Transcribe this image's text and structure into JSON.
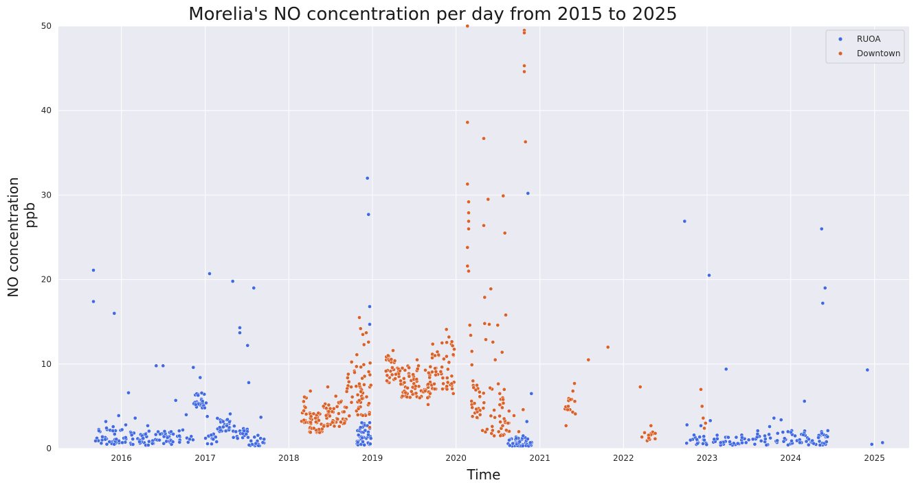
{
  "chart_data": {
    "type": "scatter",
    "title": "Morelia's NO concentration per day from 2015 to 2025",
    "xlabel": "Time",
    "ylabel": [
      "NO concentration",
      "ppb"
    ],
    "xlim": [
      "2015-04-01",
      "2025-06-01"
    ],
    "ylim": [
      0,
      50
    ],
    "x_ticks": [
      "2016",
      "2017",
      "2018",
      "2019",
      "2020",
      "2021",
      "2022",
      "2023",
      "2024",
      "2025"
    ],
    "y_ticks": [
      0,
      10,
      20,
      30,
      40,
      50
    ],
    "grid": true,
    "legend": {
      "placement": "top-right"
    },
    "series": [
      {
        "name": "RUOA",
        "color": "#4169e1",
        "points": [
          [
            "2015-09-01",
            21.1
          ],
          [
            "2015-09-01",
            17.4
          ],
          [
            "2015-12-01",
            16.0
          ],
          [
            "2015-09-10",
            0.9
          ],
          [
            "2015-09-25",
            2.1
          ],
          [
            "2015-10-10",
            1.4
          ],
          [
            "2015-10-25",
            3.2
          ],
          [
            "2015-11-10",
            0.8
          ],
          [
            "2015-11-25",
            2.1
          ],
          [
            "2015-12-10",
            1.1
          ],
          [
            "2015-12-20",
            3.9
          ],
          [
            "2016-01-05",
            0.7
          ],
          [
            "2016-01-20",
            2.8
          ],
          [
            "2016-02-01",
            6.6
          ],
          [
            "2016-02-15",
            1.6
          ],
          [
            "2016-03-01",
            3.6
          ],
          [
            "2016-03-20",
            0.8
          ],
          [
            "2016-04-05",
            1.2
          ],
          [
            "2016-04-25",
            2.7
          ],
          [
            "2016-05-15",
            0.6
          ],
          [
            "2016-06-01",
            9.8
          ],
          [
            "2016-06-15",
            1.0
          ],
          [
            "2016-07-01",
            9.8
          ],
          [
            "2016-07-20",
            1.3
          ],
          [
            "2016-08-05",
            2.0
          ],
          [
            "2016-08-25",
            5.7
          ],
          [
            "2016-09-10",
            1.5
          ],
          [
            "2016-09-25",
            2.2
          ],
          [
            "2016-10-10",
            4.0
          ],
          [
            "2016-10-25",
            1.1
          ],
          [
            "2016-11-10",
            9.6
          ],
          [
            "2016-11-20",
            5.2
          ],
          [
            "2016-12-01",
            6.3
          ],
          [
            "2016-12-10",
            8.4
          ],
          [
            "2016-12-20",
            5.6
          ],
          [
            "2017-01-05",
            5.4
          ],
          [
            "2017-01-10",
            3.8
          ],
          [
            "2017-01-20",
            20.7
          ],
          [
            "2017-02-05",
            1.1
          ],
          [
            "2017-02-20",
            0.8
          ],
          [
            "2017-03-05",
            2.5
          ],
          [
            "2017-03-20",
            3.2
          ],
          [
            "2017-04-05",
            2.7
          ],
          [
            "2017-04-20",
            4.1
          ],
          [
            "2017-05-01",
            19.8
          ],
          [
            "2017-05-15",
            2.0
          ],
          [
            "2017-06-01",
            14.3
          ],
          [
            "2017-06-01",
            13.7
          ],
          [
            "2017-06-20",
            2.1
          ],
          [
            "2017-07-05",
            12.2
          ],
          [
            "2017-07-10",
            7.8
          ],
          [
            "2017-07-20",
            0.9
          ],
          [
            "2017-08-01",
            19.0
          ],
          [
            "2017-08-10",
            0.6
          ],
          [
            "2017-09-01",
            3.7
          ],
          [
            "2017-09-15",
            1.1
          ],
          [
            "2018-11-01",
            1.6
          ],
          [
            "2018-11-10",
            2.5
          ],
          [
            "2018-11-20",
            0.8
          ],
          [
            "2018-12-01",
            4.0
          ],
          [
            "2018-12-10",
            32.0
          ],
          [
            "2018-12-15",
            27.7
          ],
          [
            "2018-12-20",
            16.8
          ],
          [
            "2018-12-20",
            14.7
          ],
          [
            "2018-12-25",
            1.2
          ],
          [
            "2020-08-20",
            1.0
          ],
          [
            "2020-09-05",
            0.6
          ],
          [
            "2020-09-20",
            1.2
          ],
          [
            "2020-10-05",
            0.8
          ],
          [
            "2020-10-20",
            1.5
          ],
          [
            "2020-11-05",
            3.2
          ],
          [
            "2020-11-10",
            30.2
          ],
          [
            "2020-11-20",
            0.7
          ],
          [
            "2020-11-25",
            6.5
          ],
          [
            "2022-09-25",
            26.9
          ],
          [
            "2022-10-05",
            2.8
          ],
          [
            "2022-10-20",
            1.0
          ],
          [
            "2022-11-05",
            1.6
          ],
          [
            "2022-11-20",
            0.6
          ],
          [
            "2022-12-05",
            2.7
          ],
          [
            "2022-12-20",
            1.0
          ],
          [
            "2023-01-10",
            20.5
          ],
          [
            "2023-01-15",
            3.3
          ],
          [
            "2023-02-01",
            1.1
          ],
          [
            "2023-03-01",
            0.7
          ],
          [
            "2023-03-25",
            9.4
          ],
          [
            "2023-04-10",
            0.8
          ],
          [
            "2023-05-15",
            0.6
          ],
          [
            "2023-06-20",
            0.7
          ],
          [
            "2023-07-20",
            1.1
          ],
          [
            "2023-08-10",
            2.1
          ],
          [
            "2023-08-25",
            0.9
          ],
          [
            "2023-09-10",
            1.5
          ],
          [
            "2023-10-01",
            2.6
          ],
          [
            "2023-10-20",
            3.6
          ],
          [
            "2023-11-05",
            1.8
          ],
          [
            "2023-11-20",
            3.4
          ],
          [
            "2023-12-05",
            1.2
          ],
          [
            "2023-12-20",
            2.0
          ],
          [
            "2024-01-05",
            0.9
          ],
          [
            "2024-01-20",
            1.5
          ],
          [
            "2024-02-10",
            0.7
          ],
          [
            "2024-03-01",
            5.6
          ],
          [
            "2024-03-20",
            1.1
          ],
          [
            "2024-04-10",
            0.6
          ],
          [
            "2024-05-01",
            1.3
          ],
          [
            "2024-05-15",
            26.0
          ],
          [
            "2024-05-20",
            17.2
          ],
          [
            "2024-05-30",
            19.0
          ],
          [
            "2024-06-05",
            0.8
          ],
          [
            "2024-06-10",
            1.4
          ],
          [
            "2024-12-01",
            9.3
          ],
          [
            "2024-12-20",
            0.5
          ],
          [
            "2025-02-05",
            0.7
          ]
        ],
        "clusters": [
          [
            "2015-09-01",
            "2016-01-15",
            0.5,
            2.6,
            32
          ],
          [
            "2016-01-15",
            "2016-11-10",
            0.4,
            2.1,
            60
          ],
          [
            "2016-11-10",
            "2016-12-31",
            4.8,
            6.6,
            22
          ],
          [
            "2017-01-01",
            "2017-02-20",
            0.5,
            1.8,
            10
          ],
          [
            "2017-02-20",
            "2017-05-01",
            2.0,
            3.6,
            26
          ],
          [
            "2017-05-01",
            "2017-07-05",
            1.2,
            2.7,
            18
          ],
          [
            "2017-07-05",
            "2017-09-15",
            0.3,
            1.6,
            16
          ],
          [
            "2018-10-25",
            "2018-12-25",
            0.4,
            3.2,
            38
          ],
          [
            "2020-08-15",
            "2020-11-30",
            0.3,
            1.4,
            38
          ],
          [
            "2022-10-01",
            "2023-07-01",
            0.4,
            1.6,
            36
          ],
          [
            "2023-07-01",
            "2024-06-15",
            0.4,
            2.2,
            58
          ]
        ]
      },
      {
        "name": "Downtown",
        "color": "#d9622b",
        "points": [
          [
            "2018-03-10",
            6.1
          ],
          [
            "2018-04-05",
            6.8
          ],
          [
            "2018-04-20",
            2.4
          ],
          [
            "2018-05-10",
            4.2
          ],
          [
            "2018-06-01",
            5.0
          ],
          [
            "2018-06-20",
            7.3
          ],
          [
            "2018-07-10",
            3.1
          ],
          [
            "2018-07-25",
            6.2
          ],
          [
            "2018-08-15",
            5.5
          ],
          [
            "2018-09-01",
            3.0
          ],
          [
            "2018-09-20",
            7.9
          ],
          [
            "2018-10-05",
            6.1
          ],
          [
            "2018-10-15",
            9.0
          ],
          [
            "2018-10-25",
            11.1
          ],
          [
            "2018-11-05",
            15.5
          ],
          [
            "2018-11-10",
            14.2
          ],
          [
            "2018-11-20",
            13.5
          ],
          [
            "2018-11-25",
            12.3
          ],
          [
            "2018-12-05",
            13.7
          ],
          [
            "2018-12-15",
            12.6
          ],
          [
            "2018-12-20",
            2.5
          ],
          [
            "2018-12-25",
            7.5
          ],
          [
            "2019-03-10",
            11.0
          ],
          [
            "2019-04-01",
            11.6
          ],
          [
            "2019-05-01",
            9.2
          ],
          [
            "2019-06-01",
            6.1
          ],
          [
            "2019-07-15",
            10.5
          ],
          [
            "2019-09-01",
            5.2
          ],
          [
            "2019-10-01",
            11.0
          ],
          [
            "2019-11-01",
            12.5
          ],
          [
            "2019-11-20",
            14.1
          ],
          [
            "2019-12-01",
            13.2
          ],
          [
            "2019-12-20",
            6.5
          ],
          [
            "2020-02-20",
            50.0
          ],
          [
            "2020-02-20",
            38.6
          ],
          [
            "2020-02-20",
            31.3
          ],
          [
            "2020-02-25",
            29.2
          ],
          [
            "2020-02-25",
            27.9
          ],
          [
            "2020-02-25",
            26.9
          ],
          [
            "2020-02-25",
            26.0
          ],
          [
            "2020-02-20",
            23.8
          ],
          [
            "2020-02-20",
            21.6
          ],
          [
            "2020-02-25",
            21.0
          ],
          [
            "2020-03-01",
            14.6
          ],
          [
            "2020-03-05",
            13.4
          ],
          [
            "2020-03-10",
            11.5
          ],
          [
            "2020-03-10",
            9.9
          ],
          [
            "2020-03-15",
            8.0
          ],
          [
            "2020-04-01",
            7.5
          ],
          [
            "2020-04-15",
            4.0
          ],
          [
            "2020-05-01",
            36.7
          ],
          [
            "2020-05-01",
            26.4
          ],
          [
            "2020-05-05",
            17.9
          ],
          [
            "2020-05-05",
            14.8
          ],
          [
            "2020-05-10",
            12.9
          ],
          [
            "2020-05-20",
            29.5
          ],
          [
            "2020-05-25",
            14.7
          ],
          [
            "2020-06-01",
            18.9
          ],
          [
            "2020-06-10",
            12.6
          ],
          [
            "2020-06-20",
            10.5
          ],
          [
            "2020-07-01",
            14.6
          ],
          [
            "2020-07-05",
            2.0
          ],
          [
            "2020-07-10",
            6.5
          ],
          [
            "2020-07-20",
            11.4
          ],
          [
            "2020-07-25",
            29.9
          ],
          [
            "2020-08-01",
            25.5
          ],
          [
            "2020-08-05",
            15.8
          ],
          [
            "2020-08-15",
            3.0
          ],
          [
            "2020-09-10",
            3.9
          ],
          [
            "2020-10-01",
            2.0
          ],
          [
            "2020-10-20",
            4.6
          ],
          [
            "2020-10-25",
            49.5
          ],
          [
            "2020-10-25",
            49.2
          ],
          [
            "2020-10-25",
            45.3
          ],
          [
            "2020-10-25",
            44.6
          ],
          [
            "2020-10-30",
            36.3
          ],
          [
            "2021-04-25",
            2.7
          ],
          [
            "2021-05-05",
            5.0
          ],
          [
            "2021-05-15",
            5.8
          ],
          [
            "2021-05-25",
            6.8
          ],
          [
            "2021-06-01",
            7.7
          ],
          [
            "2021-06-05",
            4.1
          ],
          [
            "2021-08-01",
            10.5
          ],
          [
            "2021-10-25",
            12.0
          ],
          [
            "2022-03-15",
            7.3
          ],
          [
            "2022-05-01",
            2.7
          ],
          [
            "2022-12-05",
            7.0
          ],
          [
            "2022-12-10",
            5.0
          ],
          [
            "2022-12-15",
            3.6
          ],
          [
            "2022-12-20",
            2.4
          ],
          [
            "2022-12-25",
            3.0
          ]
        ],
        "clusters": [
          [
            "2018-02-25",
            "2018-04-01",
            2.8,
            6.3,
            14
          ],
          [
            "2018-04-01",
            "2018-06-01",
            1.9,
            4.5,
            36
          ],
          [
            "2018-06-01",
            "2018-09-10",
            2.6,
            5.8,
            46
          ],
          [
            "2018-09-10",
            "2018-12-25",
            3.8,
            10.5,
            48
          ],
          [
            "2019-03-01",
            "2019-05-01",
            7.8,
            11.2,
            30
          ],
          [
            "2019-05-01",
            "2019-09-15",
            6.0,
            10.0,
            70
          ],
          [
            "2019-09-15",
            "2019-12-31",
            7.0,
            12.8,
            48
          ],
          [
            "2020-03-05",
            "2020-04-15",
            3.5,
            7.5,
            20
          ],
          [
            "2020-04-15",
            "2020-08-20",
            1.5,
            8.0,
            40
          ],
          [
            "2021-04-20",
            "2021-06-05",
            4.3,
            6.3,
            10
          ],
          [
            "2022-03-15",
            "2022-05-20",
            0.9,
            2.1,
            16
          ]
        ]
      }
    ]
  }
}
